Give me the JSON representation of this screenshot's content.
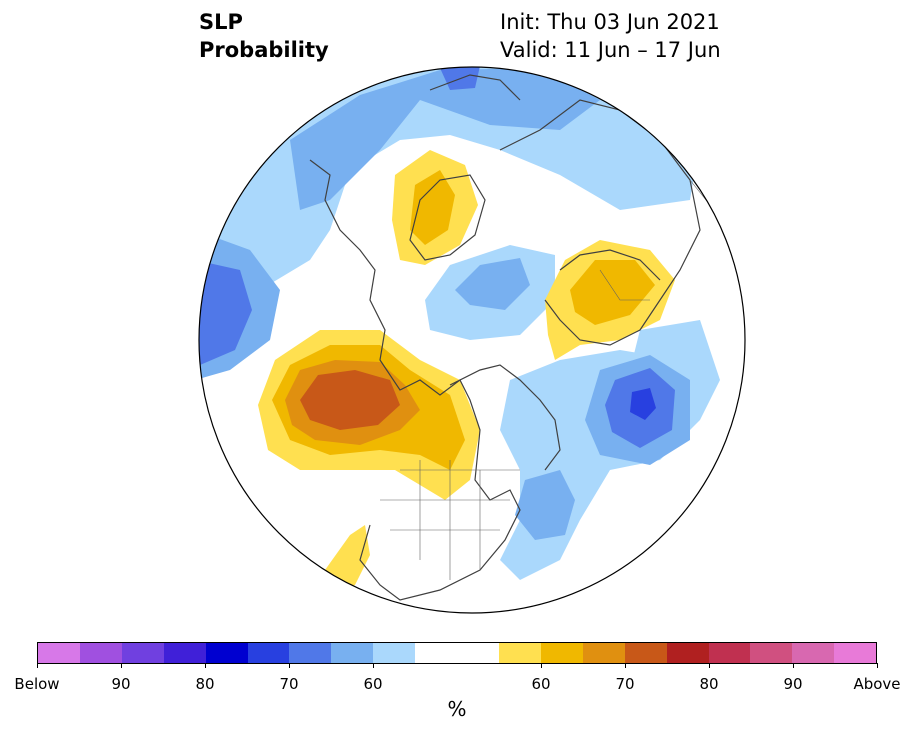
{
  "header": {
    "variable": "SLP",
    "product": "Probability",
    "init": "Init: Thu 03 Jun 2021",
    "valid": "Valid: 11 Jun – 17 Jun"
  },
  "colorbar": {
    "unit": "%",
    "colors": [
      "#d778e8",
      "#a050e0",
      "#7040e0",
      "#4020d8",
      "#0000d0",
      "#2840e0",
      "#5078e8",
      "#78b0f0",
      "#aad8fc",
      "#ffffff",
      "#ffffff",
      "#ffe050",
      "#f0b800",
      "#e09010",
      "#c85818",
      "#b02020",
      "#c03050",
      "#d05080",
      "#d868b0",
      "#e87ad8"
    ],
    "labels": [
      "Below",
      "90",
      "80",
      "70",
      "60",
      "60",
      "70",
      "80",
      "90",
      "Above"
    ]
  },
  "map": {
    "projection": "north polar stereographic",
    "anomaly_colors": {
      "below_light": "#aad8fc",
      "below_mid": "#78b0f0",
      "below_strong": "#5078e8",
      "below_vstrong": "#2840e0",
      "above_light": "#ffe050",
      "above_mid": "#f0b800",
      "above_strong": "#e09010",
      "above_vstrong": "#c85818"
    }
  }
}
